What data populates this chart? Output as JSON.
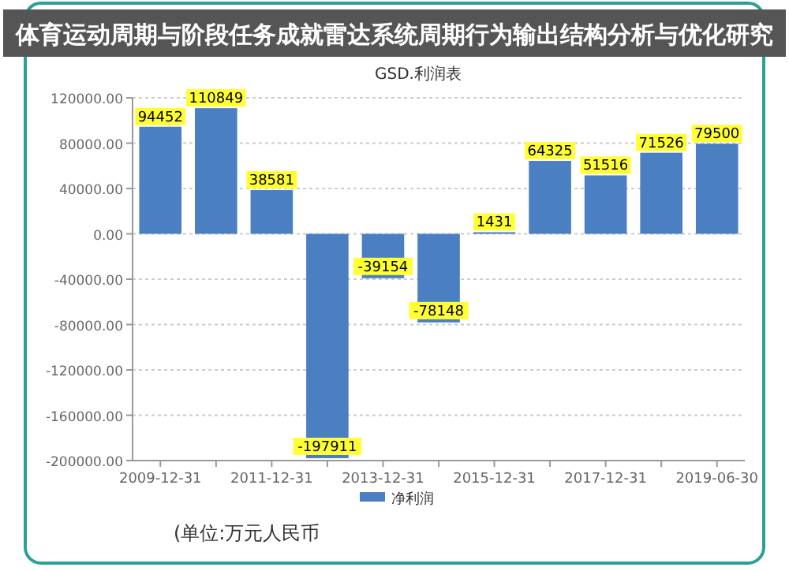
{
  "chart_data": {
    "type": "bar",
    "title": "体育运动周期与阶段任务成就雷达系统周期行为输出结构分析与优化研究",
    "subtitle": "GSD.利润表",
    "categories": [
      "2009-12-31",
      null,
      "2011-12-31",
      null,
      "2013-12-31",
      null,
      "2015-12-31",
      null,
      "2017-12-31",
      null,
      "2019-06-30"
    ],
    "series": [
      {
        "name": "净利润",
        "color": "#4a7fc1",
        "values": [
          94452,
          110849,
          38581,
          -197911,
          -39154,
          -78148,
          1431,
          64325,
          51516,
          71526,
          79500
        ]
      }
    ],
    "ylim": [
      -200000,
      120000
    ],
    "yticks": [
      {
        "value": -200000,
        "label": "-200000.00"
      },
      {
        "value": -160000,
        "label": "-160000.00"
      },
      {
        "value": -120000,
        "label": "-120000.00"
      },
      {
        "value": -80000,
        "label": "-80000.00"
      },
      {
        "value": -40000,
        "label": "-40000.00"
      },
      {
        "value": 0,
        "label": "0.00"
      },
      {
        "value": 40000,
        "label": "40000.00"
      },
      {
        "value": 80000,
        "label": "80000.00"
      },
      {
        "value": 120000,
        "label": "120000.00"
      }
    ],
    "grid": "y",
    "legend": "bottom",
    "data_labels": true,
    "annotations": [
      "(单位:万元人民币"
    ]
  }
}
